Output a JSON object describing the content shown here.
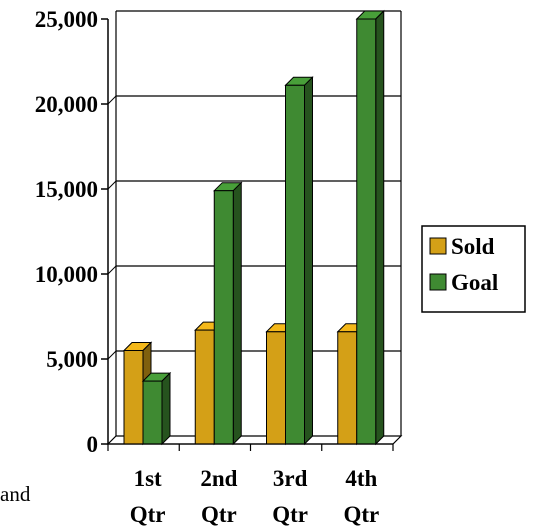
{
  "chart_data": {
    "type": "bar",
    "categories": [
      [
        "1st",
        "Qtr"
      ],
      [
        "2nd",
        "Qtr"
      ],
      [
        "3rd",
        "Qtr"
      ],
      [
        "4th",
        "Qtr"
      ]
    ],
    "series": [
      {
        "name": "Sold",
        "values": [
          5500,
          6700,
          6600,
          6600
        ],
        "color": "#d4a017"
      },
      {
        "name": "Goal",
        "values": [
          3700,
          14900,
          21100,
          25000
        ],
        "color": "#3f8a32"
      }
    ],
    "ylim": [
      0,
      25000
    ],
    "yticks": [
      "0",
      "5,000",
      "10,000",
      "15,000",
      "20,000",
      "25,000"
    ],
    "grid": true,
    "legend_position": "right",
    "style": "3d-column"
  },
  "stray_text": "and"
}
